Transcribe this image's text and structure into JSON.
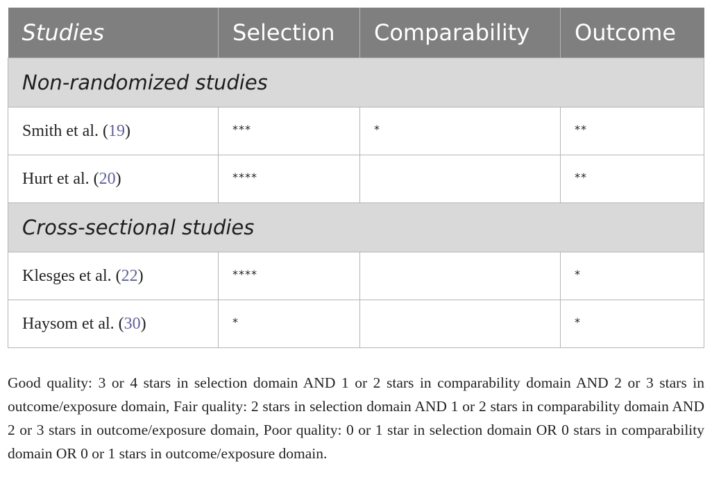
{
  "table": {
    "headers": [
      "Studies",
      "Selection",
      "Comparability",
      "Outcome"
    ],
    "sections": [
      {
        "title": "Non-randomized studies",
        "rows": [
          {
            "study": "Smith et al. (",
            "ref": "19",
            "close": ")",
            "selection": "***",
            "comparability": "*",
            "outcome": "**"
          },
          {
            "study": "Hurt et al. (",
            "ref": "20",
            "close": ")",
            "selection": "****",
            "comparability": "",
            "outcome": "**"
          }
        ]
      },
      {
        "title": "Cross-sectional studies",
        "rows": [
          {
            "study": "Klesges et al. (",
            "ref": "22",
            "close": ")",
            "selection": "****",
            "comparability": "",
            "outcome": "*"
          },
          {
            "study": "Haysom et al. (",
            "ref": "30",
            "close": ")",
            "selection": "*",
            "comparability": "",
            "outcome": "*"
          }
        ]
      }
    ]
  },
  "footnote": "Good quality: 3 or 4 stars in selection domain AND 1 or 2 stars in comparability domain AND 2 or 3 stars in outcome/exposure domain, Fair quality: 2 stars in selection domain AND 1 or 2 stars in comparability domain AND 2 or 3 stars in outcome/exposure domain, Poor quality: 0 or 1 star in selection domain OR 0 stars in comparability domain OR 0 or 1 stars in outcome/exposure domain."
}
